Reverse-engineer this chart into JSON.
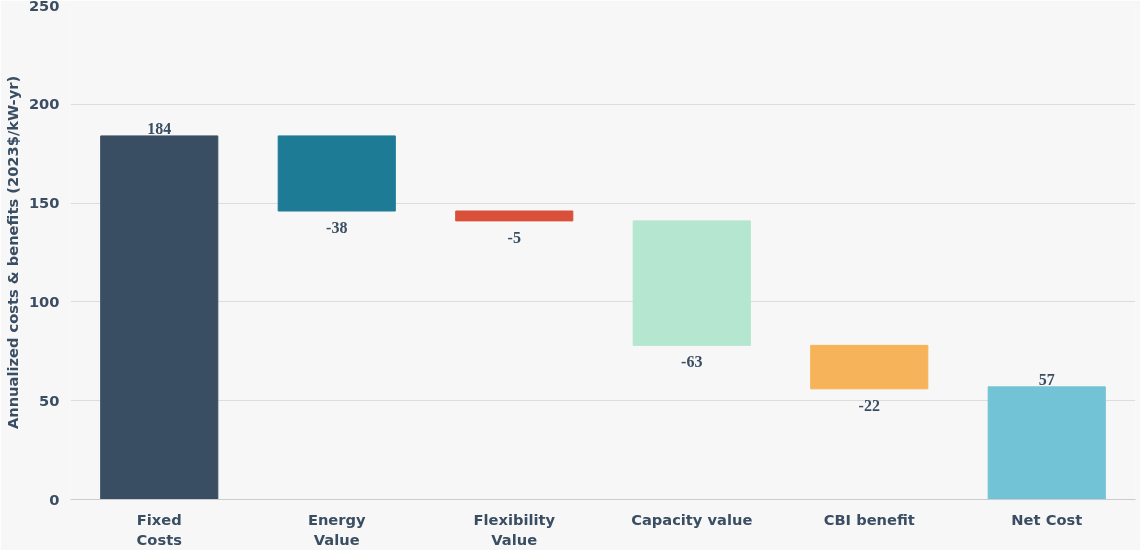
{
  "chart_data": {
    "type": "bar",
    "ylabel": "Annualized costs & benefits (2023$/kW-yr)",
    "categories": [
      "Fixed\nCosts",
      "Energy\nValue",
      "Flexibility\nValue",
      "Capacity value",
      "CBI benefit",
      "Net Cost"
    ],
    "values": [
      184,
      -38,
      -5,
      -63,
      -22,
      57
    ],
    "base": [
      0,
      184,
      146,
      141,
      78,
      0
    ],
    "colors": [
      "#3a4e63",
      "#1e7b96",
      "#d9513a",
      "#b5e6cf",
      "#f7b35a",
      "#72c3d6"
    ],
    "ylim": [
      0,
      250
    ],
    "yticks": [
      0,
      50,
      100,
      150,
      200,
      250
    ],
    "grid": "y",
    "data_labels": true
  }
}
